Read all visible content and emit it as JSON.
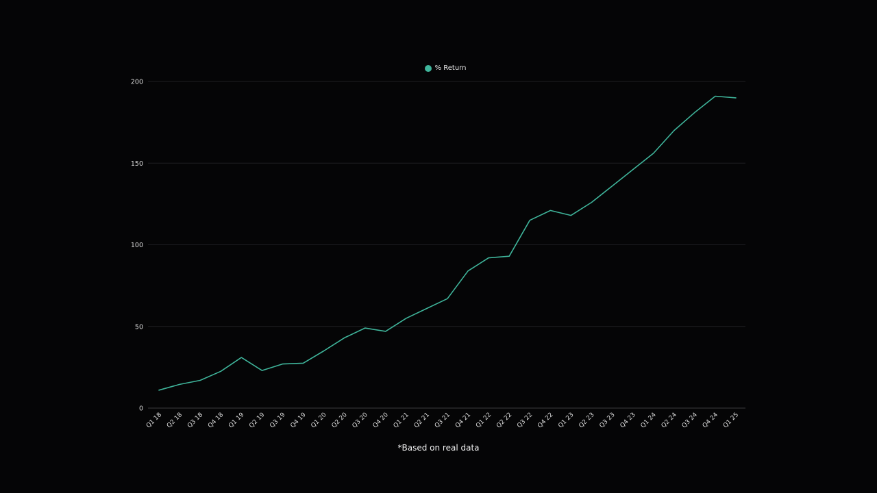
{
  "chart_data": {
    "type": "line",
    "categories": [
      "Q1 18",
      "Q2 18",
      "Q3 18",
      "Q4 18",
      "Q1 19",
      "Q2 19",
      "Q3 19",
      "Q4 19",
      "Q1 20",
      "Q2 20",
      "Q3 20",
      "Q4 20",
      "Q1 21",
      "Q2 21",
      "Q3 21",
      "Q4 21",
      "Q1 22",
      "Q2 22",
      "Q3 22",
      "Q4 22",
      "Q1 23",
      "Q2 23",
      "Q3 23",
      "Q4 23",
      "Q1 24",
      "Q2 24",
      "Q3 24",
      "Q4 24",
      "Q1 25"
    ],
    "series": [
      {
        "name": "% Return",
        "color": "#3fb59b",
        "values": [
          11,
          14.5,
          17,
          22.5,
          31,
          23,
          27,
          27.5,
          35,
          43,
          49,
          47,
          55,
          61,
          67,
          84,
          92,
          93,
          115,
          121,
          118,
          126,
          136,
          146,
          156,
          170,
          181,
          191,
          190
        ]
      }
    ],
    "yticks": [
      0,
      50,
      100,
      150,
      200
    ],
    "ylim": [
      0,
      200
    ],
    "grid": true,
    "legend_position": "top-center",
    "title": "",
    "xlabel": "",
    "ylabel": ""
  },
  "legend": {
    "label": "% Return",
    "color": "#3fb59b"
  },
  "footnote": "*Based on real data",
  "colors": {
    "background": "#050506",
    "gridline": "#1e1e22",
    "axis": "#3a3a3e",
    "line": "#3fb59b"
  }
}
